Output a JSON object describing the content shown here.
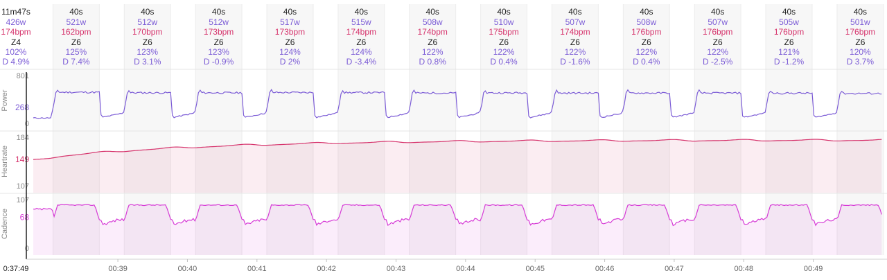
{
  "colors": {
    "power": "#7b5bd6",
    "heartrate": "#d6336c",
    "cadence": "#d63ad6",
    "text": "#222222",
    "work_band": "#f7f7f7",
    "rest_band": "#ffffff",
    "divider": "#e4e4e4"
  },
  "summary": {
    "time": "11m47s",
    "power": "426w",
    "heartrate": "174bpm",
    "zone": "Z4",
    "pct": "102%",
    "drift": "D 4.9%"
  },
  "cursor_time": "0:37:49",
  "chart_data": {
    "type": "line",
    "x_axis": {
      "ticks": [
        "00:39",
        "00:40",
        "00:41",
        "00:42",
        "00:43",
        "00:44",
        "00:45",
        "00:46",
        "00:47",
        "00:48",
        "00:49"
      ],
      "range_seconds": [
        2267,
        3000
      ]
    },
    "intervals": [
      {
        "duration": "40s",
        "power": "521w",
        "heartrate": "162bpm",
        "zone": "Z6",
        "pct": "125%",
        "drift": "D 7.4%",
        "power_value": 521,
        "hr_value": 162
      },
      {
        "duration": "40s",
        "power": "512w",
        "heartrate": "170bpm",
        "zone": "Z6",
        "pct": "123%",
        "drift": "D 3.1%",
        "power_value": 512,
        "hr_value": 170
      },
      {
        "duration": "40s",
        "power": "512w",
        "heartrate": "173bpm",
        "zone": "Z6",
        "pct": "123%",
        "drift": "D -0.9%",
        "power_value": 512,
        "hr_value": 173
      },
      {
        "duration": "40s",
        "power": "517w",
        "heartrate": "173bpm",
        "zone": "Z6",
        "pct": "124%",
        "drift": "D 2%",
        "power_value": 517,
        "hr_value": 173
      },
      {
        "duration": "40s",
        "power": "515w",
        "heartrate": "174bpm",
        "zone": "Z6",
        "pct": "124%",
        "drift": "D -3.4%",
        "power_value": 515,
        "hr_value": 174
      },
      {
        "duration": "40s",
        "power": "508w",
        "heartrate": "174bpm",
        "zone": "Z6",
        "pct": "122%",
        "drift": "D 0.8%",
        "power_value": 508,
        "hr_value": 174
      },
      {
        "duration": "40s",
        "power": "510w",
        "heartrate": "175bpm",
        "zone": "Z6",
        "pct": "122%",
        "drift": "D 0.4%",
        "power_value": 510,
        "hr_value": 175
      },
      {
        "duration": "40s",
        "power": "507w",
        "heartrate": "174bpm",
        "zone": "Z6",
        "pct": "122%",
        "drift": "D -1.6%",
        "power_value": 507,
        "hr_value": 174
      },
      {
        "duration": "40s",
        "power": "508w",
        "heartrate": "176bpm",
        "zone": "Z6",
        "pct": "122%",
        "drift": "D 0.4%",
        "power_value": 508,
        "hr_value": 176
      },
      {
        "duration": "40s",
        "power": "507w",
        "heartrate": "176bpm",
        "zone": "Z6",
        "pct": "122%",
        "drift": "D -2.5%",
        "power_value": 507,
        "hr_value": 176
      },
      {
        "duration": "40s",
        "power": "505w",
        "heartrate": "176bpm",
        "zone": "Z6",
        "pct": "121%",
        "drift": "D -1.2%",
        "power_value": 505,
        "hr_value": 176
      },
      {
        "duration": "40s",
        "power": "501w",
        "heartrate": "176bpm",
        "zone": "Z6",
        "pct": "120%",
        "drift": "D 3.7%",
        "power_value": 501,
        "hr_value": 176
      }
    ],
    "panels": [
      {
        "name": "Power",
        "ylabel": "Power",
        "ticks": [
          "801",
          "268",
          "0"
        ],
        "tick_values": [
          801,
          268,
          0
        ],
        "ylim": [
          0,
          801
        ],
        "highlight": "268",
        "color": "#7b5bd6",
        "work_level": 512,
        "rest_level": 120
      },
      {
        "name": "Heartrate",
        "ylabel": "Heartrate",
        "ticks": [
          "184",
          "149",
          "107"
        ],
        "tick_values": [
          184,
          149,
          107
        ],
        "ylim": [
          107,
          184
        ],
        "highlight": "149",
        "color": "#d6336c",
        "start_level": 149,
        "end_level": 179
      },
      {
        "name": "Cadence",
        "ylabel": "Cadence",
        "ticks": [
          "107",
          "68",
          "0"
        ],
        "tick_values": [
          107,
          68,
          0
        ],
        "ylim": [
          0,
          107
        ],
        "highlight": "68",
        "color": "#d63ad6",
        "work_level": 94,
        "rest_level": 50
      }
    ]
  }
}
